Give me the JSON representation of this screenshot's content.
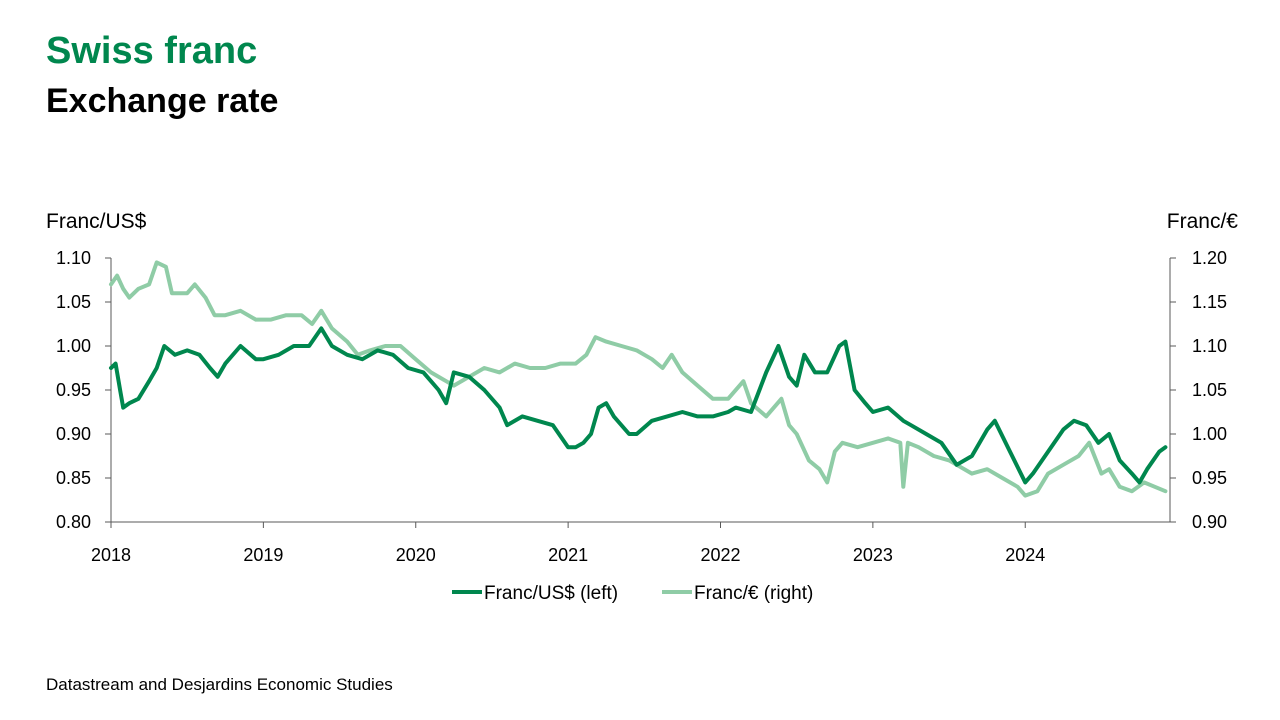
{
  "header": {
    "title": "Swiss franc",
    "subtitle": "Exchange rate"
  },
  "source": "Datastream and Desjardins Economic Studies",
  "colors": {
    "usd_line": "#00874e",
    "eur_line": "#8fcca6",
    "axis": "#595959"
  },
  "chart_data": {
    "type": "line",
    "title": "",
    "x_range": [
      2018.0,
      2024.95
    ],
    "x_ticks": [
      "2018",
      "2019",
      "2020",
      "2021",
      "2022",
      "2023",
      "2024"
    ],
    "left_axis": {
      "label": "Franc/US$",
      "range": [
        0.8,
        1.1
      ],
      "ticks": [
        "0.80",
        "0.85",
        "0.90",
        "0.95",
        "1.00",
        "1.05",
        "1.10"
      ]
    },
    "right_axis": {
      "label": "Franc/€",
      "range": [
        0.9,
        1.2
      ],
      "ticks": [
        "0.90",
        "0.95",
        "1.00",
        "1.05",
        "1.10",
        "1.15",
        "1.20"
      ]
    },
    "legend_position": "bottom",
    "grid": false,
    "series": [
      {
        "name": "Franc/US$ (left)",
        "axis": "left",
        "points": [
          [
            2018.0,
            0.975
          ],
          [
            2018.03,
            0.98
          ],
          [
            2018.06,
            0.95
          ],
          [
            2018.08,
            0.93
          ],
          [
            2018.12,
            0.935
          ],
          [
            2018.18,
            0.94
          ],
          [
            2018.25,
            0.96
          ],
          [
            2018.3,
            0.975
          ],
          [
            2018.35,
            1.0
          ],
          [
            2018.42,
            0.99
          ],
          [
            2018.5,
            0.995
          ],
          [
            2018.58,
            0.99
          ],
          [
            2018.65,
            0.975
          ],
          [
            2018.7,
            0.965
          ],
          [
            2018.75,
            0.98
          ],
          [
            2018.85,
            1.0
          ],
          [
            2018.95,
            0.985
          ],
          [
            2019.0,
            0.985
          ],
          [
            2019.1,
            0.99
          ],
          [
            2019.2,
            1.0
          ],
          [
            2019.3,
            1.0
          ],
          [
            2019.38,
            1.02
          ],
          [
            2019.45,
            1.0
          ],
          [
            2019.55,
            0.99
          ],
          [
            2019.65,
            0.985
          ],
          [
            2019.75,
            0.995
          ],
          [
            2019.85,
            0.99
          ],
          [
            2019.95,
            0.975
          ],
          [
            2020.05,
            0.97
          ],
          [
            2020.15,
            0.95
          ],
          [
            2020.2,
            0.935
          ],
          [
            2020.25,
            0.97
          ],
          [
            2020.35,
            0.965
          ],
          [
            2020.45,
            0.95
          ],
          [
            2020.55,
            0.93
          ],
          [
            2020.6,
            0.91
          ],
          [
            2020.7,
            0.92
          ],
          [
            2020.8,
            0.915
          ],
          [
            2020.9,
            0.91
          ],
          [
            2021.0,
            0.885
          ],
          [
            2021.05,
            0.885
          ],
          [
            2021.1,
            0.89
          ],
          [
            2021.15,
            0.9
          ],
          [
            2021.2,
            0.93
          ],
          [
            2021.25,
            0.935
          ],
          [
            2021.3,
            0.92
          ],
          [
            2021.4,
            0.9
          ],
          [
            2021.45,
            0.9
          ],
          [
            2021.55,
            0.915
          ],
          [
            2021.65,
            0.92
          ],
          [
            2021.75,
            0.925
          ],
          [
            2021.85,
            0.92
          ],
          [
            2021.95,
            0.92
          ],
          [
            2022.05,
            0.925
          ],
          [
            2022.1,
            0.93
          ],
          [
            2022.2,
            0.925
          ],
          [
            2022.3,
            0.97
          ],
          [
            2022.38,
            1.0
          ],
          [
            2022.45,
            0.965
          ],
          [
            2022.5,
            0.955
          ],
          [
            2022.55,
            0.99
          ],
          [
            2022.62,
            0.97
          ],
          [
            2022.7,
            0.97
          ],
          [
            2022.78,
            1.0
          ],
          [
            2022.82,
            1.005
          ],
          [
            2022.88,
            0.95
          ],
          [
            2022.95,
            0.935
          ],
          [
            2023.0,
            0.925
          ],
          [
            2023.1,
            0.93
          ],
          [
            2023.2,
            0.915
          ],
          [
            2023.25,
            0.91
          ],
          [
            2023.35,
            0.9
          ],
          [
            2023.45,
            0.89
          ],
          [
            2023.55,
            0.865
          ],
          [
            2023.65,
            0.875
          ],
          [
            2023.75,
            0.905
          ],
          [
            2023.8,
            0.915
          ],
          [
            2023.9,
            0.88
          ],
          [
            2024.0,
            0.845
          ],
          [
            2024.05,
            0.855
          ],
          [
            2024.15,
            0.88
          ],
          [
            2024.25,
            0.905
          ],
          [
            2024.32,
            0.915
          ],
          [
            2024.4,
            0.91
          ],
          [
            2024.48,
            0.89
          ],
          [
            2024.55,
            0.9
          ],
          [
            2024.62,
            0.87
          ],
          [
            2024.7,
            0.855
          ],
          [
            2024.75,
            0.845
          ],
          [
            2024.8,
            0.86
          ],
          [
            2024.88,
            0.88
          ],
          [
            2024.92,
            0.885
          ]
        ]
      },
      {
        "name": "Franc/€ (right)",
        "axis": "right",
        "points": [
          [
            2018.0,
            1.17
          ],
          [
            2018.04,
            1.18
          ],
          [
            2018.08,
            1.165
          ],
          [
            2018.12,
            1.155
          ],
          [
            2018.18,
            1.165
          ],
          [
            2018.25,
            1.17
          ],
          [
            2018.3,
            1.195
          ],
          [
            2018.36,
            1.19
          ],
          [
            2018.4,
            1.16
          ],
          [
            2018.5,
            1.16
          ],
          [
            2018.55,
            1.17
          ],
          [
            2018.62,
            1.155
          ],
          [
            2018.68,
            1.135
          ],
          [
            2018.75,
            1.135
          ],
          [
            2018.85,
            1.14
          ],
          [
            2018.95,
            1.13
          ],
          [
            2019.05,
            1.13
          ],
          [
            2019.15,
            1.135
          ],
          [
            2019.25,
            1.135
          ],
          [
            2019.32,
            1.125
          ],
          [
            2019.38,
            1.14
          ],
          [
            2019.45,
            1.12
          ],
          [
            2019.55,
            1.105
          ],
          [
            2019.62,
            1.09
          ],
          [
            2019.7,
            1.095
          ],
          [
            2019.8,
            1.1
          ],
          [
            2019.9,
            1.1
          ],
          [
            2020.0,
            1.085
          ],
          [
            2020.1,
            1.07
          ],
          [
            2020.2,
            1.06
          ],
          [
            2020.25,
            1.055
          ],
          [
            2020.35,
            1.065
          ],
          [
            2020.45,
            1.075
          ],
          [
            2020.55,
            1.07
          ],
          [
            2020.65,
            1.08
          ],
          [
            2020.75,
            1.075
          ],
          [
            2020.85,
            1.075
          ],
          [
            2020.95,
            1.08
          ],
          [
            2021.05,
            1.08
          ],
          [
            2021.12,
            1.09
          ],
          [
            2021.18,
            1.11
          ],
          [
            2021.25,
            1.105
          ],
          [
            2021.35,
            1.1
          ],
          [
            2021.45,
            1.095
          ],
          [
            2021.55,
            1.085
          ],
          [
            2021.62,
            1.075
          ],
          [
            2021.68,
            1.09
          ],
          [
            2021.75,
            1.07
          ],
          [
            2021.85,
            1.055
          ],
          [
            2021.95,
            1.04
          ],
          [
            2022.05,
            1.04
          ],
          [
            2022.15,
            1.06
          ],
          [
            2022.2,
            1.035
          ],
          [
            2022.3,
            1.02
          ],
          [
            2022.4,
            1.04
          ],
          [
            2022.45,
            1.01
          ],
          [
            2022.5,
            1.0
          ],
          [
            2022.58,
            0.97
          ],
          [
            2022.65,
            0.96
          ],
          [
            2022.7,
            0.945
          ],
          [
            2022.75,
            0.98
          ],
          [
            2022.8,
            0.99
          ],
          [
            2022.9,
            0.985
          ],
          [
            2023.0,
            0.99
          ],
          [
            2023.1,
            0.995
          ],
          [
            2023.18,
            0.99
          ],
          [
            2023.2,
            0.94
          ],
          [
            2023.23,
            0.99
          ],
          [
            2023.3,
            0.985
          ],
          [
            2023.4,
            0.975
          ],
          [
            2023.5,
            0.97
          ],
          [
            2023.55,
            0.965
          ],
          [
            2023.65,
            0.955
          ],
          [
            2023.75,
            0.96
          ],
          [
            2023.85,
            0.95
          ],
          [
            2023.95,
            0.94
          ],
          [
            2024.0,
            0.93
          ],
          [
            2024.08,
            0.935
          ],
          [
            2024.15,
            0.955
          ],
          [
            2024.25,
            0.965
          ],
          [
            2024.35,
            0.975
          ],
          [
            2024.42,
            0.99
          ],
          [
            2024.5,
            0.955
          ],
          [
            2024.55,
            0.96
          ],
          [
            2024.62,
            0.94
          ],
          [
            2024.7,
            0.935
          ],
          [
            2024.78,
            0.945
          ],
          [
            2024.85,
            0.94
          ],
          [
            2024.92,
            0.935
          ]
        ]
      }
    ]
  }
}
